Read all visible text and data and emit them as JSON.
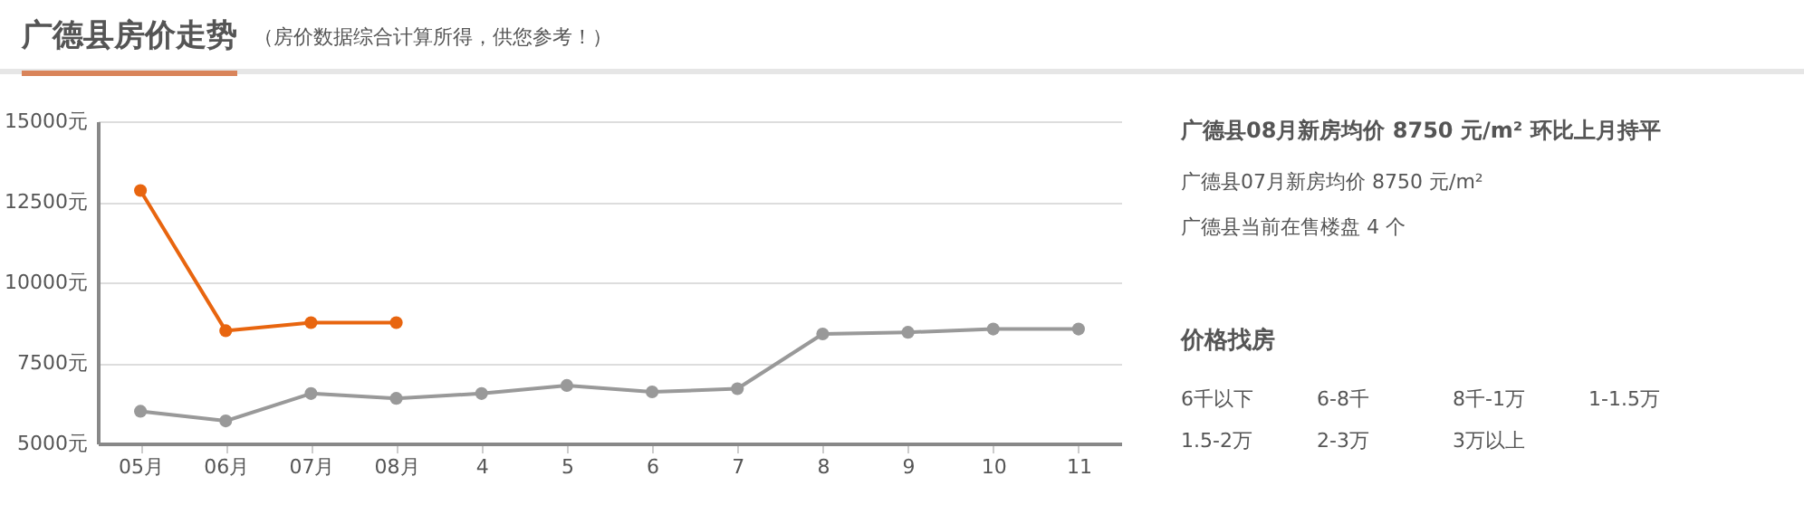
{
  "chart_data": {
    "type": "line",
    "title": "广德县房价走势",
    "subtitle": "（房价数据综合计算所得，供您参考！）",
    "categories": [
      "05月",
      "06月",
      "07月",
      "08月",
      "4",
      "5",
      "6",
      "7",
      "8",
      "9",
      "10",
      "11"
    ],
    "series": [
      {
        "color": "#e8650f",
        "values": [
          12850,
          8500,
          8750,
          8750,
          null,
          null,
          null,
          null,
          null,
          null,
          null,
          null
        ]
      },
      {
        "color": "#999999",
        "values": [
          6000,
          5700,
          6550,
          6400,
          6550,
          6800,
          6600,
          6700,
          8400,
          8450,
          8550,
          8550
        ]
      }
    ],
    "ylim": [
      5000,
      15000
    ],
    "yticks": [
      {
        "value": 5000,
        "label": "5000元"
      },
      {
        "value": 7500,
        "label": "7500元"
      },
      {
        "value": 10000,
        "label": "10000元"
      },
      {
        "value": 12500,
        "label": "12500元"
      },
      {
        "value": 15000,
        "label": "15000元"
      }
    ],
    "grid": "y",
    "legend": false,
    "marker": "circle",
    "line_style": "solid",
    "annotations": [
      "广德县08月新房均价 8750 元/m²  环比上月持平",
      "广德县07月新房均价 8750 元/m²",
      "广德县当前在售楼盘 4 个",
      "价格找房",
      "6千以下",
      "6-8千",
      "8千-1万",
      "1-1.5万",
      "1.5-2万",
      "2-3万",
      "3万以上"
    ]
  }
}
